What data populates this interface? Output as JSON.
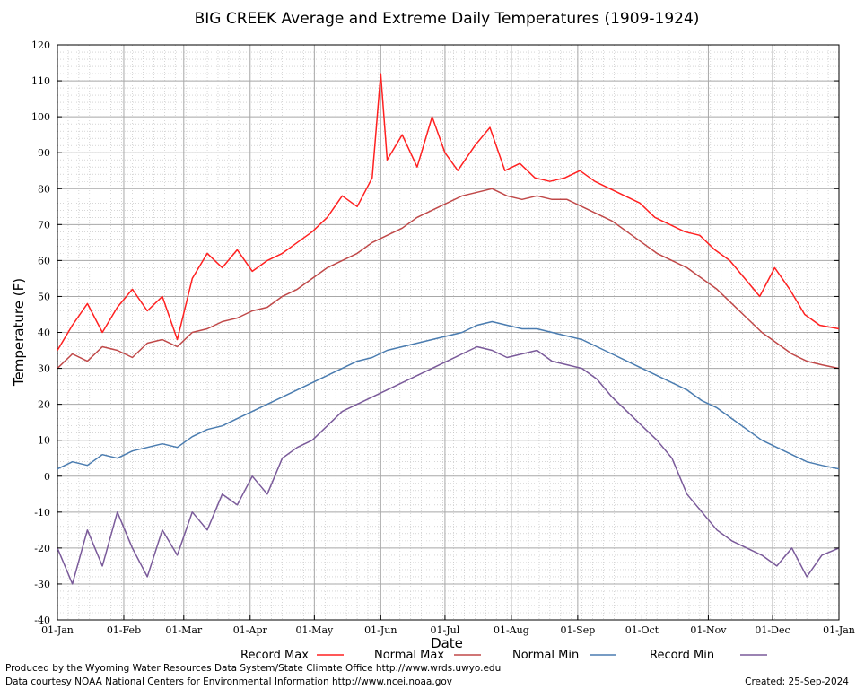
{
  "chart_data": {
    "type": "line",
    "title": "BIG CREEK Average and Extreme Daily Temperatures (1909-1924)",
    "xlabel": "Date",
    "ylabel": "Temperature (F)",
    "ylim": [
      -40,
      120
    ],
    "xlim_days": [
      1,
      366
    ],
    "yticks": [
      "-40",
      "-30",
      "-20",
      "-10",
      "0",
      "10",
      "20",
      "30",
      "40",
      "50",
      "60",
      "70",
      "80",
      "90",
      "100",
      "110",
      "120"
    ],
    "xticks": [
      "01-Jan",
      "01-Feb",
      "01-Mar",
      "01-Apr",
      "01-May",
      "01-Jun",
      "01-Jul",
      "01-Aug",
      "01-Sep",
      "01-Oct",
      "01-Nov",
      "01-Dec",
      "01-Jan"
    ],
    "grid": true,
    "legend_position": "bottom",
    "x_note": "Daily series sampled at roughly weekly dates; x values are day of year",
    "series": [
      {
        "name": "Record Max",
        "color": "#ff2020",
        "x": [
          1,
          8,
          15,
          22,
          29,
          36,
          43,
          50,
          57,
          64,
          71,
          78,
          85,
          92,
          99,
          106,
          113,
          120,
          127,
          134,
          141,
          148,
          152,
          155,
          162,
          169,
          176,
          182,
          188,
          196,
          203,
          210,
          217,
          224,
          231,
          238,
          245,
          252,
          259,
          266,
          273,
          280,
          287,
          294,
          301,
          308,
          315,
          322,
          329,
          336,
          343,
          350,
          357,
          366
        ],
        "y": [
          35,
          42,
          48,
          40,
          47,
          52,
          46,
          50,
          38,
          55,
          62,
          58,
          63,
          57,
          60,
          62,
          65,
          68,
          72,
          78,
          75,
          83,
          112,
          88,
          95,
          86,
          100,
          90,
          85,
          92,
          97,
          85,
          87,
          83,
          82,
          83,
          85,
          82,
          80,
          78,
          76,
          72,
          70,
          68,
          67,
          63,
          60,
          55,
          50,
          58,
          52,
          45,
          42,
          41
        ]
      },
      {
        "name": "Normal Max",
        "color": "#c04848",
        "x": [
          1,
          8,
          15,
          22,
          29,
          36,
          43,
          50,
          57,
          64,
          71,
          78,
          85,
          92,
          99,
          106,
          113,
          120,
          127,
          134,
          141,
          148,
          155,
          162,
          169,
          176,
          183,
          190,
          197,
          204,
          211,
          218,
          225,
          232,
          239,
          246,
          253,
          260,
          267,
          274,
          281,
          288,
          295,
          302,
          309,
          316,
          323,
          330,
          337,
          344,
          351,
          358,
          366
        ],
        "y": [
          30,
          34,
          32,
          36,
          35,
          33,
          37,
          38,
          36,
          40,
          41,
          43,
          44,
          46,
          47,
          50,
          52,
          55,
          58,
          60,
          62,
          65,
          67,
          69,
          72,
          74,
          76,
          78,
          79,
          80,
          78,
          77,
          78,
          77,
          77,
          75,
          73,
          71,
          68,
          65,
          62,
          60,
          58,
          55,
          52,
          48,
          44,
          40,
          37,
          34,
          32,
          31,
          30
        ]
      },
      {
        "name": "Normal Min",
        "color": "#4a7cb0",
        "x": [
          1,
          8,
          15,
          22,
          29,
          36,
          43,
          50,
          57,
          64,
          71,
          78,
          85,
          92,
          99,
          106,
          113,
          120,
          127,
          134,
          141,
          148,
          155,
          162,
          169,
          176,
          183,
          190,
          197,
          204,
          211,
          218,
          225,
          232,
          239,
          246,
          253,
          260,
          267,
          274,
          281,
          288,
          295,
          302,
          309,
          316,
          323,
          330,
          337,
          344,
          351,
          358,
          366
        ],
        "y": [
          2,
          4,
          3,
          6,
          5,
          7,
          8,
          9,
          8,
          11,
          13,
          14,
          16,
          18,
          20,
          22,
          24,
          26,
          28,
          30,
          32,
          33,
          35,
          36,
          37,
          38,
          39,
          40,
          42,
          43,
          42,
          41,
          41,
          40,
          39,
          38,
          36,
          34,
          32,
          30,
          28,
          26,
          24,
          21,
          19,
          16,
          13,
          10,
          8,
          6,
          4,
          3,
          2
        ]
      },
      {
        "name": "Record Min",
        "color": "#7a5a9a",
        "x": [
          1,
          8,
          15,
          22,
          29,
          36,
          43,
          50,
          57,
          64,
          71,
          78,
          85,
          92,
          99,
          106,
          113,
          120,
          127,
          134,
          141,
          148,
          155,
          162,
          169,
          176,
          183,
          190,
          197,
          204,
          211,
          218,
          225,
          232,
          239,
          246,
          253,
          260,
          267,
          274,
          281,
          288,
          295,
          302,
          309,
          316,
          323,
          330,
          337,
          344,
          351,
          358,
          366
        ],
        "y": [
          -20,
          -30,
          -15,
          -25,
          -10,
          -20,
          -28,
          -15,
          -22,
          -10,
          -15,
          -5,
          -8,
          0,
          -5,
          5,
          8,
          10,
          14,
          18,
          20,
          22,
          24,
          26,
          28,
          30,
          32,
          34,
          36,
          35,
          33,
          34,
          35,
          32,
          31,
          30,
          27,
          22,
          18,
          14,
          10,
          5,
          -5,
          -10,
          -15,
          -18,
          -20,
          -22,
          -25,
          -20,
          -28,
          -22,
          -20
        ]
      }
    ]
  },
  "legend": [
    {
      "label": "Record Max",
      "color": "#ff2020"
    },
    {
      "label": "Normal Max",
      "color": "#c04848"
    },
    {
      "label": "Normal Min",
      "color": "#4a7cb0"
    },
    {
      "label": "Record Min",
      "color": "#7a5a9a"
    }
  ],
  "footer": {
    "line1": "Produced by the Wyoming Water Resources Data System/State Climate Office http://www.wrds.uwyo.edu",
    "line2": "Data courtesy NOAA National Centers for Environmental Information http://www.ncei.noaa.gov",
    "created": "Created:  25-Sep-2024"
  }
}
